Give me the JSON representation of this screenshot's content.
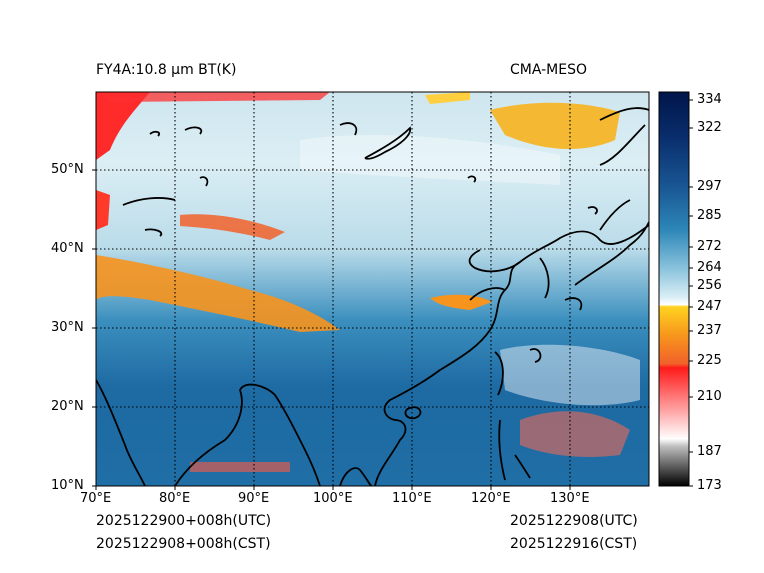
{
  "header": {
    "title_left": "FY4A:10.8 µm BT(K)",
    "title_right": "CMA-MESO"
  },
  "footer": {
    "init_utc": "2025122900+008h(UTC)",
    "init_cst": "2025122908+008h(CST)",
    "valid_utc": "2025122908(UTC)",
    "valid_cst": "2025122916(CST)"
  },
  "map": {
    "lon_labels": [
      "70°E",
      "80°E",
      "90°E",
      "100°E",
      "110°E",
      "120°E",
      "130°E"
    ],
    "lat_labels": [
      "10°N",
      "20°N",
      "30°N",
      "40°N",
      "50°N"
    ],
    "lon_range": [
      70,
      140
    ],
    "lat_range": [
      10,
      60
    ]
  },
  "colorbar": {
    "unit": "K",
    "ticks": [
      "334",
      "322",
      "297",
      "285",
      "272",
      "264",
      "256",
      "247",
      "237",
      "225",
      "210",
      "187",
      "173"
    ],
    "colors": {
      "cold_black": "#000000",
      "gray": "#bdbdbd",
      "white": "#ffffff",
      "red": "#ff1a1a",
      "orange": "#f7941d",
      "yellow": "#ffd21f",
      "light_blue": "#c6e3ee",
      "mid_blue": "#2e87b8",
      "deep_blue": "#08306b",
      "navy": "#00154a"
    }
  }
}
